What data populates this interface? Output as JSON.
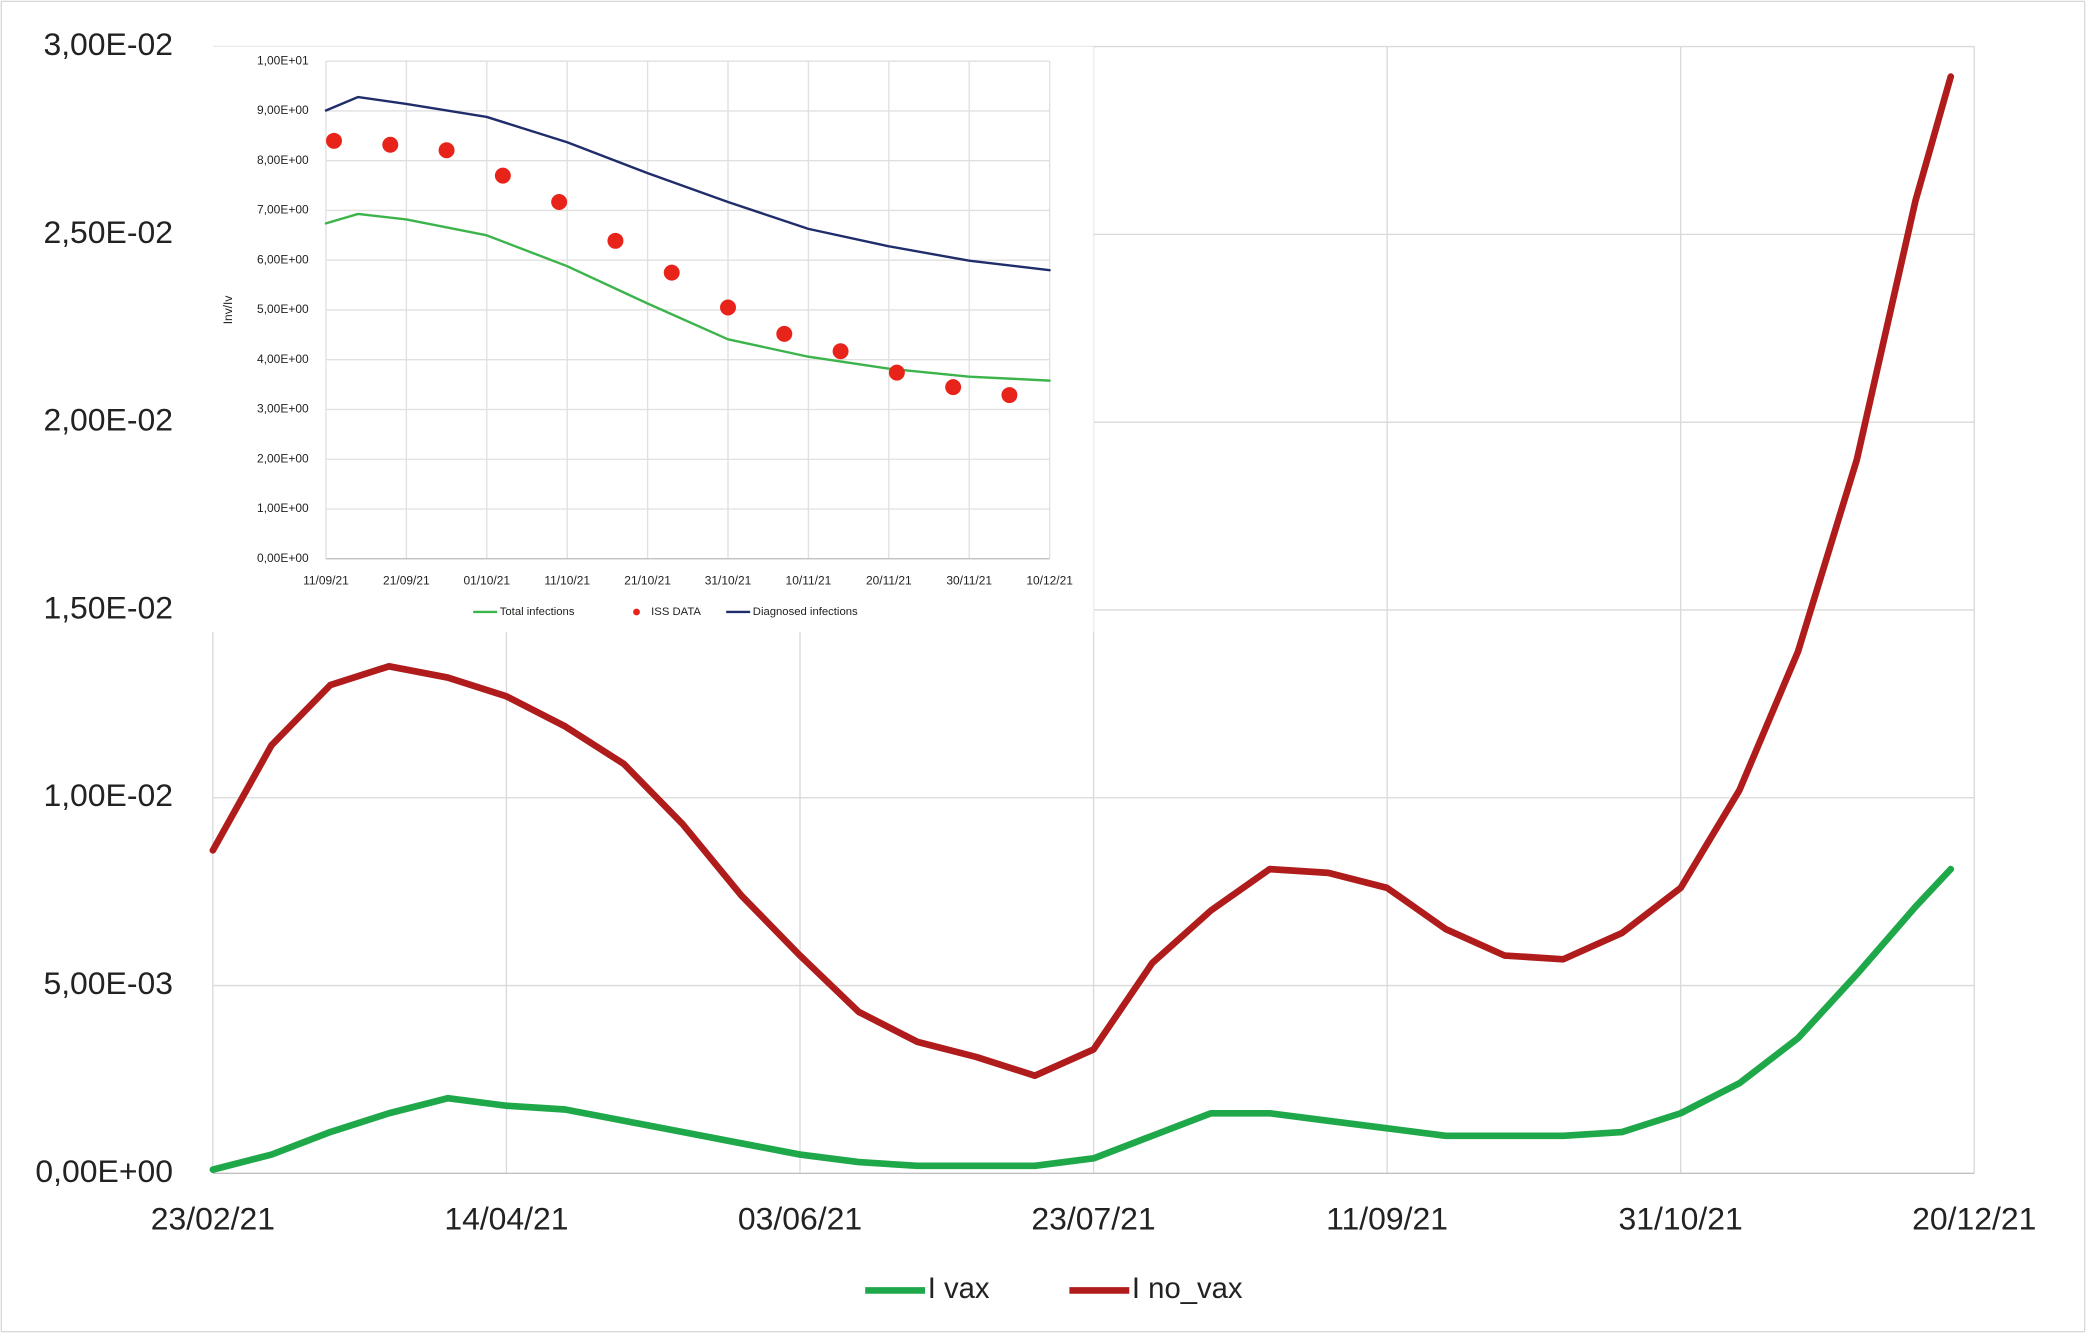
{
  "chart_data": [
    {
      "type": "line",
      "x": [
        "23/02/21",
        "05/03/21",
        "15/03/21",
        "25/03/21",
        "04/04/21",
        "14/04/21",
        "24/04/21",
        "04/05/21",
        "14/05/21",
        "24/05/21",
        "03/06/21",
        "13/06/21",
        "23/06/21",
        "03/07/21",
        "13/07/21",
        "23/07/21",
        "02/08/21",
        "12/08/21",
        "22/08/21",
        "01/09/21",
        "11/09/21",
        "21/09/21",
        "01/10/21",
        "11/10/21",
        "21/10/21",
        "31/10/21",
        "10/11/21",
        "20/11/21",
        "30/11/21",
        "10/12/21",
        "16/12/21"
      ],
      "series": [
        {
          "name": "I vax",
          "color": "#1fa84a",
          "values": [
            0.0001,
            0.0005,
            0.0011,
            0.0016,
            0.002,
            0.0018,
            0.0017,
            0.0014,
            0.0011,
            0.0008,
            0.0005,
            0.0003,
            0.0002,
            0.0002,
            0.0002,
            0.0004,
            0.001,
            0.0016,
            0.0016,
            0.0014,
            0.0012,
            0.001,
            0.001,
            0.001,
            0.0011,
            0.0016,
            0.0024,
            0.0036,
            0.0053,
            0.0071,
            0.0081
          ]
        },
        {
          "name": "I no_vax",
          "color": "#b01c1c",
          "values": [
            0.0086,
            0.0114,
            0.013,
            0.0135,
            0.0132,
            0.0127,
            0.0119,
            0.0109,
            0.0093,
            0.0074,
            0.0058,
            0.0043,
            0.0035,
            0.0031,
            0.0026,
            0.0033,
            0.0056,
            0.007,
            0.0081,
            0.008,
            0.0076,
            0.0065,
            0.0058,
            0.0057,
            0.0064,
            0.0076,
            0.0102,
            0.0139,
            0.019,
            0.0259,
            0.0292
          ]
        }
      ],
      "xlim": [
        "23/02/21",
        "20/12/21"
      ],
      "xticks": [
        "23/02/21",
        "14/04/21",
        "03/06/21",
        "23/07/21",
        "11/09/21",
        "31/10/21",
        "20/12/21"
      ],
      "ylim": [
        0,
        0.03
      ],
      "yticks": [
        {
          "value": 0,
          "label": "0,00E+00"
        },
        {
          "value": 0.005,
          "label": "5,00E-03"
        },
        {
          "value": 0.01,
          "label": "1,00E-02"
        },
        {
          "value": 0.015,
          "label": "1,50E-02"
        },
        {
          "value": 0.02,
          "label": "2,00E-02"
        },
        {
          "value": 0.025,
          "label": "2,50E-02"
        },
        {
          "value": 0.03,
          "label": "3,00E-02"
        }
      ],
      "grid": true,
      "legend": "bottom"
    },
    {
      "type": "line",
      "ylabel": "Inv/Iv",
      "series": [
        {
          "name": "Total infections",
          "color": "#3cb44b",
          "x": [
            "11/09/21",
            "15/09/21",
            "21/09/21",
            "01/10/21",
            "11/10/21",
            "21/10/21",
            "31/10/21",
            "10/11/21",
            "20/11/21",
            "30/11/21",
            "10/12/21"
          ],
          "values": [
            6.74,
            6.93,
            6.82,
            6.5,
            5.88,
            5.13,
            4.41,
            4.06,
            3.82,
            3.66,
            3.58
          ]
        },
        {
          "name": "ISS DATA",
          "color": "#e8231a",
          "type": "scatter",
          "x": [
            "12/09/21",
            "19/09/21",
            "26/09/21",
            "03/10/21",
            "10/10/21",
            "17/10/21",
            "24/10/21",
            "31/10/21",
            "07/11/21",
            "14/11/21",
            "21/11/21",
            "28/11/21",
            "05/12/21"
          ],
          "values": [
            8.4,
            8.32,
            8.21,
            7.7,
            7.17,
            6.39,
            5.75,
            5.05,
            4.52,
            4.17,
            3.74,
            3.45,
            3.29
          ]
        },
        {
          "name": "Diagnosed infections",
          "color": "#1f2d6b",
          "x": [
            "11/09/21",
            "15/09/21",
            "21/09/21",
            "01/10/21",
            "11/10/21",
            "21/10/21",
            "31/10/21",
            "10/11/21",
            "20/11/21",
            "30/11/21",
            "10/12/21"
          ],
          "values": [
            9.01,
            9.28,
            9.14,
            8.88,
            8.37,
            7.75,
            7.17,
            6.63,
            6.28,
            5.99,
            5.8
          ]
        }
      ],
      "xlim": [
        "11/09/21",
        "10/12/21"
      ],
      "xticks": [
        "11/09/21",
        "21/09/21",
        "01/10/21",
        "11/10/21",
        "21/10/21",
        "31/10/21",
        "10/11/21",
        "20/11/21",
        "30/11/21",
        "10/12/21"
      ],
      "ylim": [
        0,
        10
      ],
      "yticks": [
        {
          "value": 0,
          "label": "0,00E+00"
        },
        {
          "value": 1,
          "label": "1,00E+00"
        },
        {
          "value": 2,
          "label": "2,00E+00"
        },
        {
          "value": 3,
          "label": "3,00E+00"
        },
        {
          "value": 4,
          "label": "4,00E+00"
        },
        {
          "value": 5,
          "label": "5,00E+00"
        },
        {
          "value": 6,
          "label": "6,00E+00"
        },
        {
          "value": 7,
          "label": "7,00E+00"
        },
        {
          "value": 8,
          "label": "8,00E+00"
        },
        {
          "value": 9,
          "label": "9,00E+00"
        },
        {
          "value": 10,
          "label": "1,00E+01"
        }
      ],
      "grid": true,
      "legend": "bottom"
    }
  ]
}
